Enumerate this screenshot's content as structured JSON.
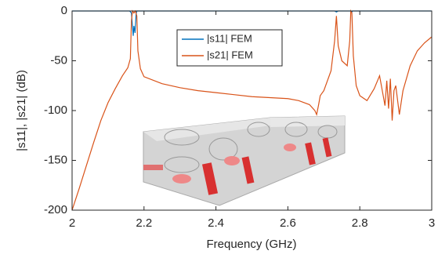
{
  "chart_data": {
    "type": "line",
    "xlabel": "Frequency (GHz)",
    "ylabel": "|s11|, |s21| (dB)",
    "xlim": [
      2,
      3
    ],
    "ylim": [
      -200,
      0
    ],
    "xticks": [
      2,
      2.2,
      2.4,
      2.6,
      2.8,
      3
    ],
    "yticks": [
      -200,
      -150,
      -100,
      -50,
      0
    ],
    "grid": false,
    "legend": "top-center",
    "series": [
      {
        "name": "|s11| FEM",
        "color": "#0072bd",
        "x": [
          2.0,
          2.16,
          2.165,
          2.17,
          2.172,
          2.175,
          2.178,
          2.18,
          2.73,
          2.735,
          2.74,
          2.775,
          2.778,
          2.78,
          3.0
        ],
        "values": [
          0,
          0,
          -2,
          -25,
          -15,
          -22,
          -3,
          0,
          0,
          -1,
          0,
          0,
          -1,
          0,
          0
        ]
      },
      {
        "name": "|s21| FEM",
        "color": "#d95319",
        "x": [
          2.0,
          2.02,
          2.04,
          2.06,
          2.08,
          2.1,
          2.12,
          2.14,
          2.155,
          2.162,
          2.165,
          2.168,
          2.172,
          2.176,
          2.18,
          2.183,
          2.19,
          2.2,
          2.25,
          2.3,
          2.35,
          2.4,
          2.45,
          2.5,
          2.55,
          2.6,
          2.63,
          2.66,
          2.675,
          2.68,
          2.685,
          2.69,
          2.7,
          2.72,
          2.73,
          2.735,
          2.74,
          2.75,
          2.765,
          2.772,
          2.775,
          2.778,
          2.782,
          2.79,
          2.8,
          2.82,
          2.84,
          2.855,
          2.865,
          2.87,
          2.875,
          2.88,
          2.885,
          2.89,
          2.895,
          2.9,
          2.91,
          2.92,
          2.94,
          2.96,
          2.98,
          3.0
        ],
        "values": [
          -200,
          -178,
          -155,
          -132,
          -110,
          -92,
          -78,
          -65,
          -57,
          -48,
          -10,
          0,
          -2,
          0,
          -5,
          -40,
          -58,
          -66,
          -73,
          -77,
          -80,
          -82,
          -84,
          -86,
          -87,
          -88,
          -90,
          -94,
          -100,
          -104,
          -95,
          -85,
          -80,
          -60,
          -30,
          -5,
          -35,
          -50,
          -55,
          -30,
          0,
          -2,
          -45,
          -75,
          -85,
          -90,
          -78,
          -65,
          -85,
          -95,
          -70,
          -98,
          -68,
          -110,
          -80,
          -75,
          -104,
          -80,
          -55,
          -40,
          -32,
          -26
        ]
      }
    ]
  }
}
